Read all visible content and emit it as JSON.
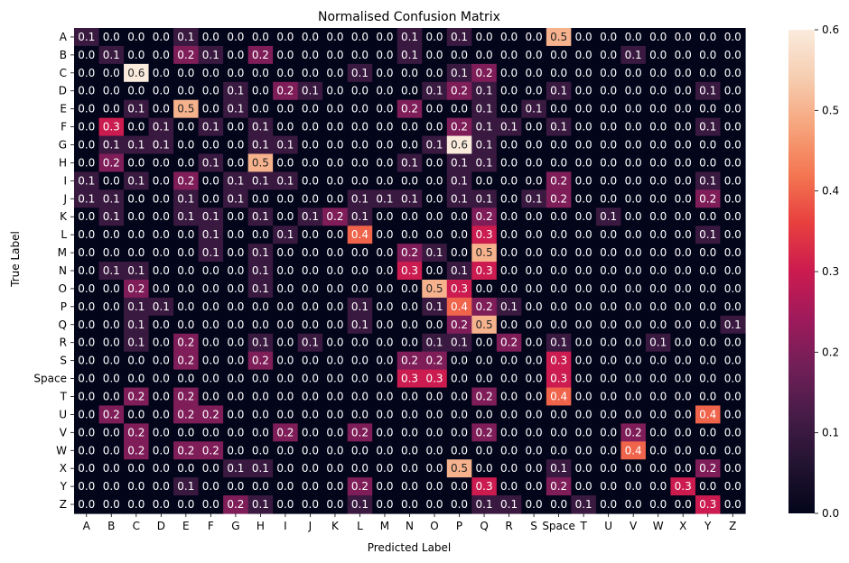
{
  "chart_data": {
    "type": "heatmap",
    "title": "Normalised Confusion Matrix",
    "xlabel": "Predicted Label",
    "ylabel": "True Label",
    "x_categories": [
      "A",
      "B",
      "C",
      "D",
      "E",
      "F",
      "G",
      "H",
      "I",
      "J",
      "K",
      "L",
      "M",
      "N",
      "O",
      "P",
      "Q",
      "R",
      "S",
      "Space",
      "T",
      "U",
      "V",
      "W",
      "X",
      "Y",
      "Z"
    ],
    "y_categories": [
      "A",
      "B",
      "C",
      "D",
      "E",
      "F",
      "G",
      "H",
      "I",
      "J",
      "K",
      "L",
      "M",
      "N",
      "O",
      "P",
      "Q",
      "R",
      "S",
      "Space",
      "T",
      "U",
      "V",
      "W",
      "X",
      "Y",
      "Z"
    ],
    "values": [
      [
        0.1,
        0.0,
        0.0,
        0.0,
        0.1,
        0.0,
        0.0,
        0.0,
        0.0,
        0.0,
        0.0,
        0.0,
        0.0,
        0.1,
        0.0,
        0.1,
        0.0,
        0.0,
        0.0,
        0.5,
        0.0,
        0.0,
        0.0,
        0.0,
        0.0,
        0.0,
        0.0
      ],
      [
        0.0,
        0.1,
        0.0,
        0.0,
        0.2,
        0.1,
        0.0,
        0.2,
        0.0,
        0.0,
        0.0,
        0.0,
        0.0,
        0.1,
        0.0,
        0.0,
        0.0,
        0.0,
        0.0,
        0.0,
        0.0,
        0.0,
        0.1,
        0.0,
        0.0,
        0.0,
        0.0
      ],
      [
        0.0,
        0.0,
        0.6,
        0.0,
        0.0,
        0.0,
        0.0,
        0.0,
        0.0,
        0.0,
        0.0,
        0.1,
        0.0,
        0.0,
        0.0,
        0.1,
        0.2,
        0.0,
        0.0,
        0.0,
        0.0,
        0.0,
        0.0,
        0.0,
        0.0,
        0.0,
        0.0
      ],
      [
        0.0,
        0.0,
        0.0,
        0.0,
        0.0,
        0.0,
        0.1,
        0.0,
        0.2,
        0.1,
        0.0,
        0.0,
        0.0,
        0.0,
        0.1,
        0.2,
        0.1,
        0.0,
        0.0,
        0.1,
        0.0,
        0.0,
        0.0,
        0.0,
        0.0,
        0.1,
        0.0
      ],
      [
        0.0,
        0.0,
        0.1,
        0.0,
        0.5,
        0.0,
        0.1,
        0.0,
        0.0,
        0.0,
        0.0,
        0.0,
        0.0,
        0.2,
        0.0,
        0.0,
        0.1,
        0.0,
        0.1,
        0.0,
        0.0,
        0.0,
        0.0,
        0.0,
        0.0,
        0.0,
        0.0
      ],
      [
        0.0,
        0.3,
        0.0,
        0.1,
        0.0,
        0.1,
        0.0,
        0.1,
        0.0,
        0.0,
        0.0,
        0.0,
        0.0,
        0.0,
        0.0,
        0.2,
        0.1,
        0.1,
        0.0,
        0.1,
        0.0,
        0.0,
        0.0,
        0.0,
        0.0,
        0.1,
        0.0
      ],
      [
        0.0,
        0.1,
        0.1,
        0.1,
        0.0,
        0.0,
        0.0,
        0.1,
        0.1,
        0.0,
        0.0,
        0.0,
        0.0,
        0.0,
        0.1,
        0.6,
        0.1,
        0.0,
        0.0,
        0.0,
        0.0,
        0.0,
        0.0,
        0.0,
        0.0,
        0.0,
        0.0
      ],
      [
        0.0,
        0.2,
        0.0,
        0.0,
        0.0,
        0.1,
        0.0,
        0.5,
        0.0,
        0.0,
        0.0,
        0.0,
        0.0,
        0.1,
        0.0,
        0.1,
        0.1,
        0.0,
        0.0,
        0.0,
        0.0,
        0.0,
        0.0,
        0.0,
        0.0,
        0.0,
        0.0
      ],
      [
        0.1,
        0.0,
        0.1,
        0.0,
        0.2,
        0.0,
        0.1,
        0.1,
        0.1,
        0.0,
        0.0,
        0.0,
        0.0,
        0.0,
        0.0,
        0.1,
        0.0,
        0.0,
        0.0,
        0.2,
        0.0,
        0.0,
        0.0,
        0.0,
        0.0,
        0.1,
        0.0
      ],
      [
        0.1,
        0.1,
        0.0,
        0.0,
        0.1,
        0.0,
        0.1,
        0.0,
        0.0,
        0.0,
        0.0,
        0.1,
        0.1,
        0.1,
        0.0,
        0.1,
        0.1,
        0.0,
        0.1,
        0.2,
        0.0,
        0.0,
        0.0,
        0.0,
        0.0,
        0.2,
        0.0
      ],
      [
        0.0,
        0.1,
        0.0,
        0.0,
        0.1,
        0.1,
        0.0,
        0.1,
        0.0,
        0.1,
        0.2,
        0.1,
        0.0,
        0.0,
        0.0,
        0.0,
        0.2,
        0.0,
        0.0,
        0.0,
        0.0,
        0.1,
        0.0,
        0.0,
        0.0,
        0.0,
        0.0
      ],
      [
        0.0,
        0.0,
        0.0,
        0.0,
        0.0,
        0.1,
        0.0,
        0.0,
        0.1,
        0.0,
        0.0,
        0.4,
        0.0,
        0.0,
        0.0,
        0.0,
        0.3,
        0.0,
        0.0,
        0.0,
        0.0,
        0.0,
        0.0,
        0.0,
        0.0,
        0.1,
        0.0
      ],
      [
        0.0,
        0.0,
        0.0,
        0.0,
        0.0,
        0.1,
        0.0,
        0.1,
        0.0,
        0.0,
        0.0,
        0.0,
        0.0,
        0.2,
        0.1,
        0.0,
        0.5,
        0.0,
        0.0,
        0.0,
        0.0,
        0.0,
        0.0,
        0.0,
        0.0,
        0.0,
        0.0
      ],
      [
        0.0,
        0.1,
        0.1,
        0.0,
        0.0,
        0.0,
        0.0,
        0.1,
        0.0,
        0.0,
        0.0,
        0.0,
        0.0,
        0.3,
        0.0,
        0.1,
        0.3,
        0.0,
        0.0,
        0.0,
        0.0,
        0.0,
        0.0,
        0.0,
        0.0,
        0.0,
        0.0
      ],
      [
        0.0,
        0.0,
        0.2,
        0.0,
        0.0,
        0.0,
        0.0,
        0.1,
        0.0,
        0.0,
        0.0,
        0.0,
        0.0,
        0.0,
        0.5,
        0.3,
        0.0,
        0.0,
        0.0,
        0.0,
        0.0,
        0.0,
        0.0,
        0.0,
        0.0,
        0.0,
        0.0
      ],
      [
        0.0,
        0.0,
        0.1,
        0.1,
        0.0,
        0.0,
        0.0,
        0.0,
        0.0,
        0.0,
        0.0,
        0.1,
        0.0,
        0.0,
        0.1,
        0.4,
        0.2,
        0.1,
        0.0,
        0.0,
        0.0,
        0.0,
        0.0,
        0.0,
        0.0,
        0.0,
        0.0
      ],
      [
        0.0,
        0.0,
        0.1,
        0.0,
        0.0,
        0.0,
        0.0,
        0.0,
        0.0,
        0.0,
        0.0,
        0.1,
        0.0,
        0.0,
        0.0,
        0.2,
        0.5,
        0.0,
        0.0,
        0.0,
        0.0,
        0.0,
        0.0,
        0.0,
        0.0,
        0.0,
        0.1
      ],
      [
        0.0,
        0.0,
        0.1,
        0.0,
        0.2,
        0.0,
        0.0,
        0.1,
        0.0,
        0.1,
        0.0,
        0.0,
        0.0,
        0.0,
        0.1,
        0.1,
        0.0,
        0.2,
        0.0,
        0.1,
        0.0,
        0.0,
        0.0,
        0.1,
        0.0,
        0.0,
        0.0
      ],
      [
        0.0,
        0.0,
        0.0,
        0.0,
        0.2,
        0.0,
        0.0,
        0.2,
        0.0,
        0.0,
        0.0,
        0.0,
        0.0,
        0.2,
        0.2,
        0.0,
        0.0,
        0.0,
        0.0,
        0.3,
        0.0,
        0.0,
        0.0,
        0.0,
        0.0,
        0.0,
        0.0
      ],
      [
        0.0,
        0.0,
        0.0,
        0.0,
        0.0,
        0.0,
        0.0,
        0.0,
        0.0,
        0.0,
        0.0,
        0.0,
        0.0,
        0.3,
        0.3,
        0.0,
        0.0,
        0.0,
        0.0,
        0.3,
        0.0,
        0.0,
        0.0,
        0.0,
        0.0,
        0.0,
        0.0
      ],
      [
        0.0,
        0.0,
        0.2,
        0.0,
        0.2,
        0.0,
        0.0,
        0.0,
        0.0,
        0.0,
        0.0,
        0.0,
        0.0,
        0.0,
        0.0,
        0.0,
        0.2,
        0.0,
        0.0,
        0.4,
        0.0,
        0.0,
        0.0,
        0.0,
        0.0,
        0.0,
        0.0
      ],
      [
        0.0,
        0.2,
        0.0,
        0.0,
        0.2,
        0.2,
        0.0,
        0.0,
        0.0,
        0.0,
        0.0,
        0.0,
        0.0,
        0.0,
        0.0,
        0.0,
        0.0,
        0.0,
        0.0,
        0.0,
        0.0,
        0.0,
        0.0,
        0.0,
        0.0,
        0.4,
        0.0
      ],
      [
        0.0,
        0.0,
        0.2,
        0.0,
        0.0,
        0.0,
        0.0,
        0.0,
        0.2,
        0.0,
        0.0,
        0.2,
        0.0,
        0.0,
        0.0,
        0.0,
        0.2,
        0.0,
        0.0,
        0.0,
        0.0,
        0.0,
        0.2,
        0.0,
        0.0,
        0.0,
        0.0
      ],
      [
        0.0,
        0.0,
        0.2,
        0.0,
        0.2,
        0.2,
        0.0,
        0.0,
        0.0,
        0.0,
        0.0,
        0.0,
        0.0,
        0.0,
        0.0,
        0.0,
        0.0,
        0.0,
        0.0,
        0.0,
        0.0,
        0.0,
        0.4,
        0.0,
        0.0,
        0.0,
        0.0
      ],
      [
        0.0,
        0.0,
        0.0,
        0.0,
        0.0,
        0.0,
        0.1,
        0.1,
        0.0,
        0.0,
        0.0,
        0.0,
        0.0,
        0.0,
        0.0,
        0.5,
        0.0,
        0.0,
        0.0,
        0.1,
        0.0,
        0.0,
        0.0,
        0.0,
        0.0,
        0.2,
        0.0
      ],
      [
        0.0,
        0.0,
        0.0,
        0.0,
        0.1,
        0.0,
        0.0,
        0.0,
        0.0,
        0.0,
        0.0,
        0.2,
        0.0,
        0.0,
        0.0,
        0.0,
        0.3,
        0.0,
        0.0,
        0.2,
        0.0,
        0.0,
        0.0,
        0.0,
        0.3,
        0.0,
        0.0
      ],
      [
        0.0,
        0.0,
        0.0,
        0.0,
        0.0,
        0.0,
        0.2,
        0.1,
        0.0,
        0.0,
        0.0,
        0.1,
        0.0,
        0.0,
        0.0,
        0.0,
        0.1,
        0.1,
        0.0,
        0.0,
        0.1,
        0.0,
        0.0,
        0.0,
        0.0,
        0.3,
        0.0
      ]
    ],
    "colorbar": {
      "range": [
        0.0,
        0.6
      ],
      "ticks": [
        "0.0",
        "0.1",
        "0.2",
        "0.3",
        "0.4",
        "0.5",
        "0.6"
      ],
      "colormap": "rocket"
    },
    "cell_label_format": "0.1f",
    "grid": false,
    "legend": "colorbar-right"
  }
}
